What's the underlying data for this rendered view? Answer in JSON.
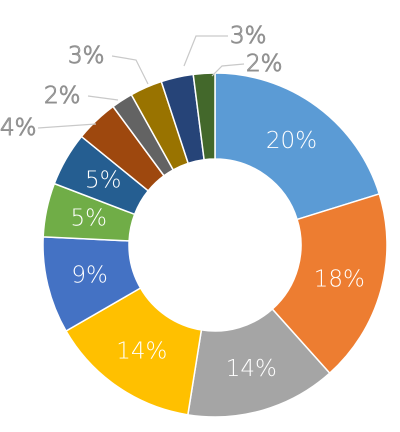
{
  "chart_data": {
    "type": "pie",
    "variant": "donut",
    "title": "",
    "legend": "none",
    "labels": [
      "20%",
      "18%",
      "14%",
      "14%",
      "9%",
      "5%",
      "5%",
      "4%",
      "2%",
      "3%",
      "3%",
      "2%"
    ],
    "values": [
      20,
      18,
      14,
      14,
      9,
      5,
      5,
      4,
      2,
      3,
      3,
      2
    ],
    "colors": [
      "#5b9bd5",
      "#ed7d31",
      "#a5a5a5",
      "#ffc000",
      "#4472c4",
      "#70ad47",
      "#255e91",
      "#9e480e",
      "#636363",
      "#997300",
      "#264478",
      "#43682b"
    ],
    "label_position": [
      "inside",
      "inside",
      "inside",
      "inside",
      "inside",
      "inside",
      "inside",
      "outside",
      "outside",
      "outside",
      "outside",
      "outside"
    ]
  }
}
